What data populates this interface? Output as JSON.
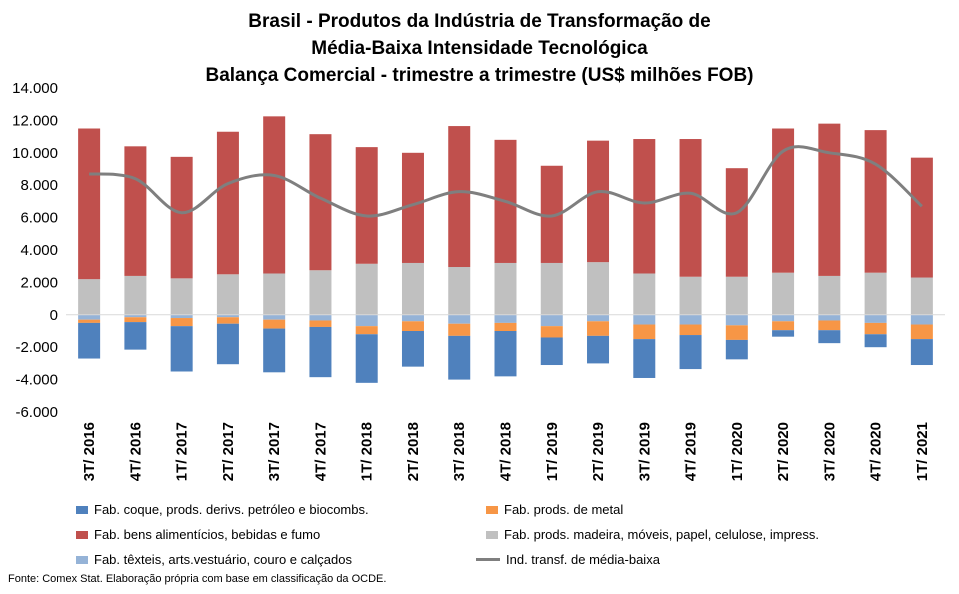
{
  "chart_data": {
    "type": "bar",
    "title_lines": [
      "Brasil - Produtos da Indústria de Transformação de",
      "Média-Baixa Intensidade Tecnológica",
      "Balança Comercial - trimestre a trimestre (US$ milhões FOB)"
    ],
    "categories": [
      "3T/ 2016",
      "4T/ 2016",
      "1T/ 2017",
      "2T/ 2017",
      "3T/ 2017",
      "4T/ 2017",
      "1T/ 2018",
      "2T/ 2018",
      "3T/ 2018",
      "4T/ 2018",
      "1T/ 2019",
      "2T/ 2019",
      "3T/ 2019",
      "4T/ 2019",
      "1T/ 2020",
      "2T/ 2020",
      "3T/ 2020",
      "4T/ 2020",
      "1T/ 2021"
    ],
    "ylim": [
      -6000,
      14000
    ],
    "yticks": [
      -6000,
      -4000,
      -2000,
      0,
      2000,
      4000,
      6000,
      8000,
      10000,
      12000,
      14000
    ],
    "ytick_labels": [
      "-6.000",
      "-4.000",
      "-2.000",
      "0",
      "2.000",
      "4.000",
      "6.000",
      "8.000",
      "10.000",
      "12.000",
      "14.000"
    ],
    "series": [
      {
        "name": "Fab. coque, prods. derivs. petróleo e biocombs.",
        "color": "#4f81bd",
        "kind": "bar",
        "values": [
          -2200,
          -1700,
          -2800,
          -2500,
          -2700,
          -3100,
          -3000,
          -2200,
          -2700,
          -2800,
          -1700,
          -1700,
          -2400,
          -2100,
          -1200,
          -400,
          -800,
          -800,
          -1600
        ]
      },
      {
        "name": "Fab. prods. de metal",
        "color": "#f79646",
        "kind": "bar",
        "values": [
          -200,
          -300,
          -500,
          -400,
          -550,
          -400,
          -500,
          -600,
          -750,
          -500,
          -700,
          -900,
          -900,
          -650,
          -900,
          -550,
          -600,
          -700,
          -900
        ]
      },
      {
        "name": "Fab. bens alimentícios, bebidas e fumo",
        "color": "#c0504d",
        "kind": "bar",
        "values": [
          9300,
          8000,
          7500,
          8800,
          9700,
          8400,
          7200,
          6800,
          8700,
          7600,
          6000,
          7500,
          8300,
          8500,
          6700,
          8900,
          9400,
          8800,
          7400
        ]
      },
      {
        "name": "Fab. prods. madeira, móveis, papel, celulose, impress.",
        "color": "#c0c0c0",
        "kind": "bar",
        "values": [
          2200,
          2400,
          2250,
          2500,
          2550,
          2750,
          3150,
          3200,
          2950,
          3200,
          3200,
          3250,
          2550,
          2350,
          2350,
          2600,
          2400,
          2600,
          2300
        ]
      },
      {
        "name": "Fab. têxteis, arts.vestuário, couro e calçados",
        "color": "#95b3d7",
        "kind": "bar",
        "values": [
          -300,
          -150,
          -200,
          -150,
          -300,
          -350,
          -700,
          -400,
          -550,
          -500,
          -700,
          -400,
          -600,
          -600,
          -650,
          -400,
          -350,
          -500,
          -600
        ]
      },
      {
        "name": "Ind. transf. de média-baixa",
        "color": "#7f7f7f",
        "kind": "line",
        "values": [
          8700,
          8400,
          6300,
          8100,
          8600,
          7200,
          6100,
          6800,
          7600,
          7000,
          6100,
          7600,
          6900,
          7500,
          6300,
          10100,
          10000,
          9300,
          6700
        ]
      }
    ]
  },
  "footer": {
    "source": "Fonte: Comex Stat. Elaboração própria com base em classificação da OCDE."
  }
}
